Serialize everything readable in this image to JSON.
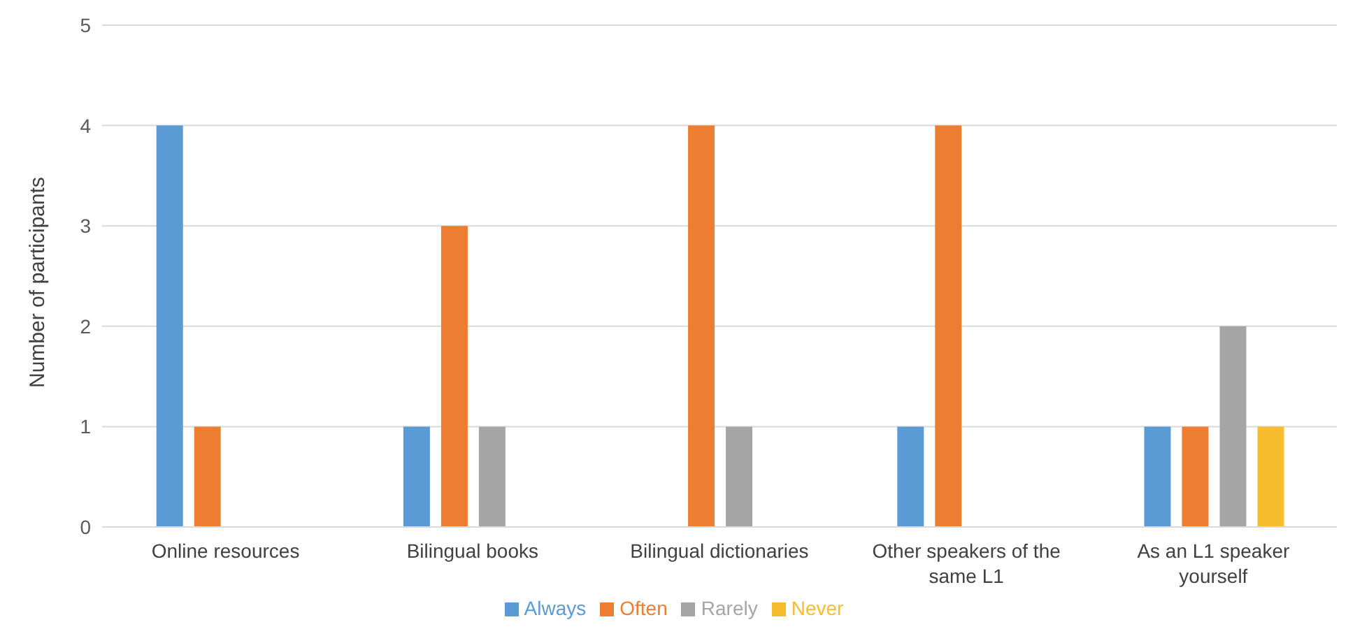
{
  "chart_data": {
    "type": "bar",
    "ylabel": "Number of participants",
    "categories": [
      "Online resources",
      "Bilingual books",
      "Bilingual dictionaries",
      "Other speakers of the same L1",
      "As an L1 speaker yourself"
    ],
    "series": [
      {
        "name": "Always",
        "color": "#5b9bd5",
        "values": [
          4,
          1,
          0,
          1,
          1
        ]
      },
      {
        "name": "Often",
        "color": "#ed7d31",
        "values": [
          1,
          3,
          4,
          4,
          1
        ]
      },
      {
        "name": "Rarely",
        "color": "#a5a5a5",
        "values": [
          0,
          1,
          1,
          0,
          2
        ]
      },
      {
        "name": "Never",
        "color": "#f7bd2e",
        "values": [
          0,
          0,
          0,
          0,
          1
        ]
      }
    ],
    "ylim": [
      0,
      5
    ],
    "yticks": [
      0,
      1,
      2,
      3,
      4,
      5
    ],
    "grid": "y",
    "legend": "bottom"
  }
}
